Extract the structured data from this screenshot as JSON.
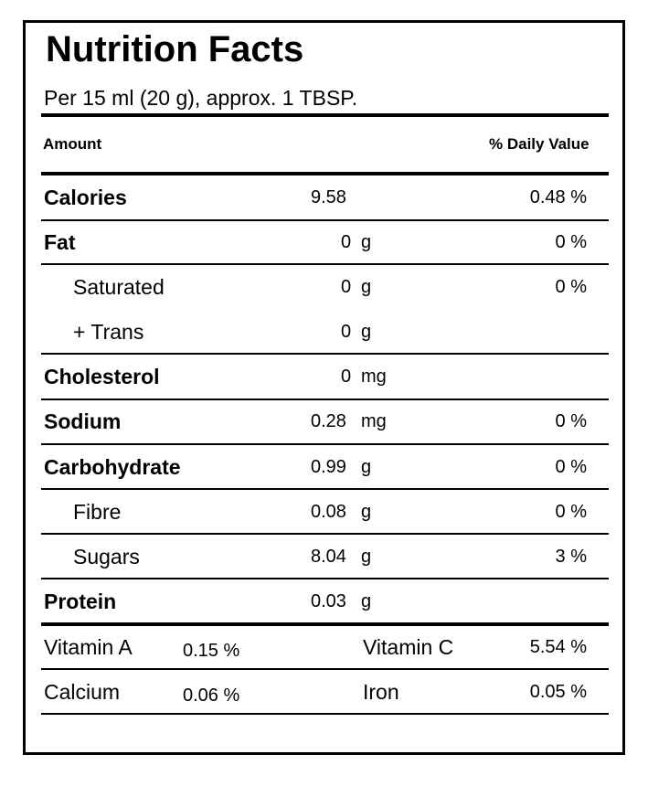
{
  "title": "Nutrition Facts",
  "serving": "Per 15 ml (20 g), approx. 1 TBSP.",
  "header": {
    "amount": "Amount",
    "daily_value": "% Daily Value"
  },
  "rows": [
    {
      "label": "Calories",
      "value": "9.58",
      "unit": "",
      "dv": "0.48 %"
    },
    {
      "label": "Fat",
      "value": "0",
      "unit": "g",
      "dv": "0 %"
    },
    {
      "label": "Saturated",
      "value": "0",
      "unit": "g",
      "dv": "0 %"
    },
    {
      "label": "+ Trans",
      "value": "0",
      "unit": "g",
      "dv": ""
    },
    {
      "label": "Cholesterol",
      "value": "0",
      "unit": "mg",
      "dv": ""
    },
    {
      "label": "Sodium",
      "value": "0.28",
      "unit": "mg",
      "dv": "0 %"
    },
    {
      "label": "Carbohydrate",
      "value": "0.99",
      "unit": "g",
      "dv": "0 %"
    },
    {
      "label": "Fibre",
      "value": "0.08",
      "unit": "g",
      "dv": "0 %"
    },
    {
      "label": "Sugars",
      "value": "8.04",
      "unit": "g",
      "dv": "3 %"
    },
    {
      "label": "Protein",
      "value": "0.03",
      "unit": "g",
      "dv": ""
    }
  ],
  "vitamins": [
    {
      "label": "Vitamin A",
      "value": "0.15 %"
    },
    {
      "label": "Vitamin C",
      "value": "5.54 %"
    },
    {
      "label": "Calcium",
      "value": "0.06 %"
    },
    {
      "label": "Iron",
      "value": "0.05 %"
    }
  ]
}
